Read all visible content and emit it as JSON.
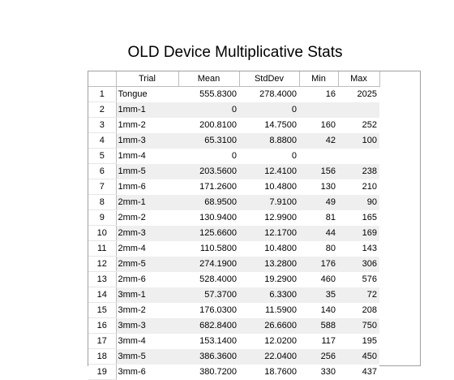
{
  "title": "OLD Device Multiplicative Stats",
  "columns": [
    "",
    "Trial",
    "Mean",
    "StdDev",
    "Min",
    "Max"
  ],
  "rows": [
    {
      "n": "1",
      "trial": "Tongue",
      "mean": "555.8300",
      "std": "278.4000",
      "min": "16",
      "max": "2025"
    },
    {
      "n": "2",
      "trial": "1mm-1",
      "mean": "0",
      "std": "0",
      "min": "",
      "max": ""
    },
    {
      "n": "3",
      "trial": "1mm-2",
      "mean": "200.8100",
      "std": "14.7500",
      "min": "160",
      "max": "252"
    },
    {
      "n": "4",
      "trial": "1mm-3",
      "mean": "65.3100",
      "std": "8.8800",
      "min": "42",
      "max": "100"
    },
    {
      "n": "5",
      "trial": "1mm-4",
      "mean": "0",
      "std": "0",
      "min": "",
      "max": ""
    },
    {
      "n": "6",
      "trial": "1mm-5",
      "mean": "203.5600",
      "std": "12.4100",
      "min": "156",
      "max": "238"
    },
    {
      "n": "7",
      "trial": "1mm-6",
      "mean": "171.2600",
      "std": "10.4800",
      "min": "130",
      "max": "210"
    },
    {
      "n": "8",
      "trial": "2mm-1",
      "mean": "68.9500",
      "std": "7.9100",
      "min": "49",
      "max": "90"
    },
    {
      "n": "9",
      "trial": "2mm-2",
      "mean": "130.9400",
      "std": "12.9900",
      "min": "81",
      "max": "165"
    },
    {
      "n": "10",
      "trial": "2mm-3",
      "mean": "125.6600",
      "std": "12.1700",
      "min": "44",
      "max": "169"
    },
    {
      "n": "11",
      "trial": "2mm-4",
      "mean": "110.5800",
      "std": "10.4800",
      "min": "80",
      "max": "143"
    },
    {
      "n": "12",
      "trial": "2mm-5",
      "mean": "274.1900",
      "std": "13.2800",
      "min": "176",
      "max": "306"
    },
    {
      "n": "13",
      "trial": "2mm-6",
      "mean": "528.4000",
      "std": "19.2900",
      "min": "460",
      "max": "576"
    },
    {
      "n": "14",
      "trial": "3mm-1",
      "mean": "57.3700",
      "std": "6.3300",
      "min": "35",
      "max": "72"
    },
    {
      "n": "15",
      "trial": "3mm-2",
      "mean": "176.0300",
      "std": "11.5900",
      "min": "140",
      "max": "208"
    },
    {
      "n": "16",
      "trial": "3mm-3",
      "mean": "682.8400",
      "std": "26.6600",
      "min": "588",
      "max": "750"
    },
    {
      "n": "17",
      "trial": "3mm-4",
      "mean": "153.1400",
      "std": "12.0200",
      "min": "117",
      "max": "195"
    },
    {
      "n": "18",
      "trial": "3mm-5",
      "mean": "386.3600",
      "std": "22.0400",
      "min": "256",
      "max": "450"
    },
    {
      "n": "19",
      "trial": "3mm-6",
      "mean": "380.7200",
      "std": "18.7600",
      "min": "330",
      "max": "437"
    }
  ]
}
